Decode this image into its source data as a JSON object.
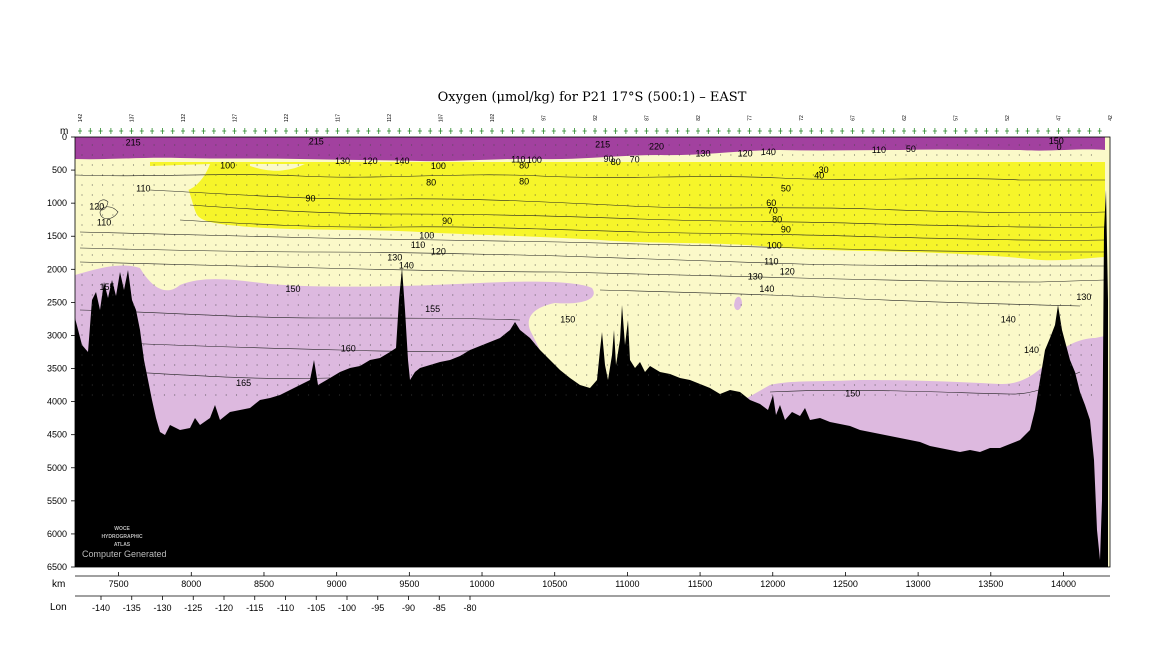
{
  "chart_data": {
    "type": "section",
    "title": "Oxygen (μmol/kg) for P21 17°S (500:1) – EAST",
    "depth_axis": {
      "name": "m",
      "range": [
        0,
        6500
      ],
      "ticks": [
        0,
        500,
        1000,
        1500,
        2000,
        2500,
        3000,
        3500,
        4000,
        4500,
        5000,
        5500,
        6000,
        6500
      ]
    },
    "km_axis": {
      "name": "km",
      "range": [
        7200,
        14320
      ],
      "ticks": [
        7500,
        8000,
        8500,
        9000,
        9500,
        10000,
        10500,
        11000,
        11500,
        12000,
        12500,
        13000,
        13500,
        14000
      ]
    },
    "lon_axis": {
      "name": "Lon",
      "ticks": [
        -140,
        -135,
        -130,
        -125,
        -120,
        -115,
        -110,
        -105,
        -100,
        -95,
        -90,
        -85,
        -80
      ]
    },
    "fill_colors": {
      "high_purple": "#a2419f",
      "yellow_low": "#f6f52a",
      "pale_mid": "#fbf9c9",
      "lilac_deep": "#ddb9df",
      "bottom": "#000000"
    },
    "contour_labels": [
      {
        "text": "215",
        "km": 7600,
        "depth": 80
      },
      {
        "text": "215",
        "km": 8860,
        "depth": 70
      },
      {
        "text": "215",
        "km": 10830,
        "depth": 110
      },
      {
        "text": "220",
        "km": 11200,
        "depth": 140
      },
      {
        "text": "100",
        "km": 8250,
        "depth": 430
      },
      {
        "text": "130",
        "km": 9040,
        "depth": 360
      },
      {
        "text": "120",
        "km": 9230,
        "depth": 360
      },
      {
        "text": "140",
        "km": 9450,
        "depth": 360
      },
      {
        "text": "110",
        "km": 7670,
        "depth": 780
      },
      {
        "text": "120",
        "km": 7350,
        "depth": 1050
      },
      {
        "text": "110",
        "km": 7400,
        "depth": 1290
      },
      {
        "text": "90",
        "km": 8820,
        "depth": 930
      },
      {
        "text": "80",
        "km": 9650,
        "depth": 690
      },
      {
        "text": "100",
        "km": 9700,
        "depth": 440
      },
      {
        "text": "110",
        "km": 10250,
        "depth": 340
      },
      {
        "text": "100",
        "km": 10360,
        "depth": 350
      },
      {
        "text": "80",
        "km": 10290,
        "depth": 670
      },
      {
        "text": "80",
        "km": 10290,
        "depth": 430
      },
      {
        "text": "90",
        "km": 9760,
        "depth": 1270
      },
      {
        "text": "100",
        "km": 9620,
        "depth": 1490
      },
      {
        "text": "110",
        "km": 9560,
        "depth": 1630
      },
      {
        "text": "120",
        "km": 9700,
        "depth": 1730
      },
      {
        "text": "130",
        "km": 9400,
        "depth": 1820
      },
      {
        "text": "140",
        "km": 9480,
        "depth": 1940
      },
      {
        "text": "90",
        "km": 10870,
        "depth": 330
      },
      {
        "text": "80",
        "km": 10920,
        "depth": 380
      },
      {
        "text": "70",
        "km": 11050,
        "depth": 340
      },
      {
        "text": "130",
        "km": 11520,
        "depth": 250
      },
      {
        "text": "120",
        "km": 11810,
        "depth": 250
      },
      {
        "text": "140",
        "km": 11970,
        "depth": 230
      },
      {
        "text": "110",
        "km": 12730,
        "depth": 200
      },
      {
        "text": "50",
        "km": 12950,
        "depth": 180
      },
      {
        "text": "50",
        "km": 12090,
        "depth": 780
      },
      {
        "text": "40",
        "km": 12320,
        "depth": 580
      },
      {
        "text": "30",
        "km": 12350,
        "depth": 500
      },
      {
        "text": "60",
        "km": 11990,
        "depth": 1000
      },
      {
        "text": "70",
        "km": 12000,
        "depth": 1110
      },
      {
        "text": "80",
        "km": 12030,
        "depth": 1250
      },
      {
        "text": "90",
        "km": 12090,
        "depth": 1400
      },
      {
        "text": "100",
        "km": 12010,
        "depth": 1640
      },
      {
        "text": "110",
        "km": 11990,
        "depth": 1880
      },
      {
        "text": "120",
        "km": 12100,
        "depth": 2030
      },
      {
        "text": "130",
        "km": 11880,
        "depth": 2110
      },
      {
        "text": "140",
        "km": 11960,
        "depth": 2300
      },
      {
        "text": "155",
        "km": 7420,
        "depth": 2270
      },
      {
        "text": "150",
        "km": 8700,
        "depth": 2300
      },
      {
        "text": "155",
        "km": 9660,
        "depth": 2600
      },
      {
        "text": "150",
        "km": 10590,
        "depth": 2760
      },
      {
        "text": "160",
        "km": 9080,
        "depth": 3200
      },
      {
        "text": "165",
        "km": 8360,
        "depth": 3720
      },
      {
        "text": "150",
        "km": 12550,
        "depth": 3880
      },
      {
        "text": "140",
        "km": 13620,
        "depth": 2760
      },
      {
        "text": "140",
        "km": 13780,
        "depth": 3220
      },
      {
        "text": "130",
        "km": 14140,
        "depth": 2420
      },
      {
        "text": "150",
        "km": 13950,
        "depth": 60
      },
      {
        "text": "0",
        "km": 13970,
        "depth": 150
      }
    ]
  },
  "stations": [
    "142",
    "137",
    "132",
    "127",
    "122",
    "117",
    "112",
    "107",
    "102",
    "97",
    "92",
    "87",
    "82",
    "77",
    "72",
    "67",
    "62",
    "57",
    "52",
    "47",
    "42",
    "37",
    "32",
    "27",
    "22",
    "17"
  ],
  "credit": {
    "logo_line1": "WOCE",
    "logo_line2": "HYDROGRAPHIC",
    "logo_line3": "ATLAS",
    "generated": "Computer Generated"
  }
}
